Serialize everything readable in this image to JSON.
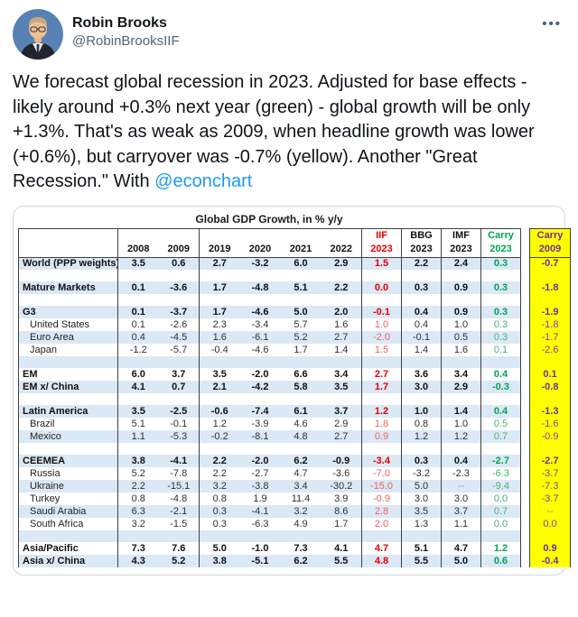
{
  "tweet": {
    "author": "Robin Brooks",
    "handle": "@RobinBrooksIIF",
    "more_label": "•••",
    "text": "We forecast global recession in 2023. Adjusted for base effects - likely around +0.3% next year (green) - global growth will be only +1.3%. That's as weak as 2009, when headline growth was lower (+0.6%), but carryover was -0.7% (yellow). Another \"Great Recession.\" With ",
    "mention": "@econchart"
  },
  "colors": {
    "link_blue": "#1d9bf0",
    "iif_red": "#e60000",
    "carry_green": "#00a550",
    "carry09_purple": "#7030a0",
    "carry09_yellow": "#ffff00",
    "row_stripe_blue": "#dbe8f5"
  },
  "table": {
    "title": "Global GDP Growth, in % y/y",
    "header_row1": [
      "",
      "",
      "",
      "",
      "",
      "",
      "",
      "IIF",
      "BBG",
      "IMF",
      "Carry",
      "Carry"
    ],
    "header_row2": [
      "",
      "2008",
      "2009",
      "2019",
      "2020",
      "2021",
      "2022",
      "2023",
      "2023",
      "2023",
      "2023",
      "2009"
    ],
    "rows": [
      {
        "label": "World (PPP weights)",
        "bold": true,
        "indent": false,
        "blank": false,
        "values": [
          "3.5",
          "0.6",
          "2.7",
          "-3.2",
          "6.0",
          "2.9",
          "1.5",
          "2.2",
          "2.4",
          "0.3",
          "-0.7"
        ]
      },
      {
        "label": "",
        "bold": false,
        "indent": false,
        "blank": true,
        "values": []
      },
      {
        "label": "Mature Markets",
        "bold": true,
        "indent": false,
        "blank": false,
        "values": [
          "0.1",
          "-3.6",
          "1.7",
          "-4.8",
          "5.1",
          "2.2",
          "0.0",
          "0.3",
          "0.9",
          "0.3",
          "-1.8"
        ]
      },
      {
        "label": "",
        "bold": false,
        "indent": false,
        "blank": true,
        "values": []
      },
      {
        "label": "G3",
        "bold": true,
        "indent": false,
        "blank": false,
        "values": [
          "0.1",
          "-3.7",
          "1.7",
          "-4.6",
          "5.0",
          "2.0",
          "-0.1",
          "0.4",
          "0.9",
          "0.3",
          "-1.9"
        ]
      },
      {
        "label": "United States",
        "bold": false,
        "indent": true,
        "blank": false,
        "values": [
          "0.1",
          "-2.6",
          "2.3",
          "-3.4",
          "5.7",
          "1.6",
          "1.0",
          "0.4",
          "1.0",
          "0.3",
          "-1.8"
        ]
      },
      {
        "label": "Euro Area",
        "bold": false,
        "indent": true,
        "blank": false,
        "values": [
          "0.4",
          "-4.5",
          "1.6",
          "-6.1",
          "5.2",
          "2.7",
          "-2.0",
          "-0.1",
          "0.5",
          "0.3",
          "-1.7"
        ]
      },
      {
        "label": "Japan",
        "bold": false,
        "indent": true,
        "blank": false,
        "values": [
          "-1.2",
          "-5.7",
          "-0.4",
          "-4.6",
          "1.7",
          "1.4",
          "1.5",
          "1.4",
          "1.6",
          "0.1",
          "-2.6"
        ]
      },
      {
        "label": "",
        "bold": false,
        "indent": false,
        "blank": true,
        "values": []
      },
      {
        "label": "EM",
        "bold": true,
        "indent": false,
        "blank": false,
        "values": [
          "6.0",
          "3.7",
          "3.5",
          "-2.0",
          "6.6",
          "3.4",
          "2.7",
          "3.6",
          "3.4",
          "0.4",
          "0.1"
        ]
      },
      {
        "label": "EM x/ China",
        "bold": true,
        "indent": false,
        "blank": false,
        "values": [
          "4.1",
          "0.7",
          "2.1",
          "-4.2",
          "5.8",
          "3.5",
          "1.7",
          "3.0",
          "2.9",
          "-0.3",
          "-0.8"
        ]
      },
      {
        "label": "",
        "bold": false,
        "indent": false,
        "blank": true,
        "values": []
      },
      {
        "label": "Latin America",
        "bold": true,
        "indent": false,
        "blank": false,
        "values": [
          "3.5",
          "-2.5",
          "-0.6",
          "-7.4",
          "6.1",
          "3.7",
          "1.2",
          "1.0",
          "1.4",
          "0.4",
          "-1.3"
        ]
      },
      {
        "label": "Brazil",
        "bold": false,
        "indent": true,
        "blank": false,
        "values": [
          "5.1",
          "-0.1",
          "1.2",
          "-3.9",
          "4.6",
          "2.9",
          "1.8",
          "0.8",
          "1.0",
          "0.5",
          "-1.6"
        ]
      },
      {
        "label": "Mexico",
        "bold": false,
        "indent": true,
        "blank": false,
        "values": [
          "1.1",
          "-5.3",
          "-0.2",
          "-8.1",
          "4.8",
          "2.7",
          "0.9",
          "1.2",
          "1.2",
          "0.7",
          "-0.9"
        ]
      },
      {
        "label": "",
        "bold": false,
        "indent": false,
        "blank": true,
        "values": []
      },
      {
        "label": "CEEMEA",
        "bold": true,
        "indent": false,
        "blank": false,
        "values": [
          "3.8",
          "-4.1",
          "2.2",
          "-2.0",
          "6.2",
          "-0.9",
          "-3.4",
          "0.3",
          "0.4",
          "-2.7",
          "-2.7"
        ]
      },
      {
        "label": "Russia",
        "bold": false,
        "indent": true,
        "blank": false,
        "values": [
          "5.2",
          "-7.8",
          "2.2",
          "-2.7",
          "4.7",
          "-3.6",
          "-7.0",
          "-3.2",
          "-2.3",
          "-6.3",
          "-3.7"
        ]
      },
      {
        "label": "Ukraine",
        "bold": false,
        "indent": true,
        "blank": false,
        "values": [
          "2.2",
          "-15.1",
          "3.2",
          "-3.8",
          "3.4",
          "-30.2",
          "-15.0",
          "5.0",
          "--",
          "-9.4",
          "-7.3"
        ]
      },
      {
        "label": "Turkey",
        "bold": false,
        "indent": true,
        "blank": false,
        "values": [
          "0.8",
          "-4.8",
          "0.8",
          "1.9",
          "11.4",
          "3.9",
          "-0.9",
          "3.0",
          "3.0",
          "0.0",
          "-3.7"
        ]
      },
      {
        "label": "Saudi Arabia",
        "bold": false,
        "indent": true,
        "blank": false,
        "values": [
          "6.3",
          "-2.1",
          "0.3",
          "-4.1",
          "3.2",
          "8.6",
          "2.8",
          "3.5",
          "3.7",
          "0.7",
          "--"
        ]
      },
      {
        "label": "South Africa",
        "bold": false,
        "indent": true,
        "blank": false,
        "values": [
          "3.2",
          "-1.5",
          "0.3",
          "-6.3",
          "4.9",
          "1.7",
          "2.0",
          "1.3",
          "1.1",
          "0.0",
          "0.0"
        ]
      },
      {
        "label": "",
        "bold": false,
        "indent": false,
        "blank": true,
        "values": []
      },
      {
        "label": "Asia/Pacific",
        "bold": true,
        "indent": false,
        "blank": false,
        "values": [
          "7.3",
          "7.6",
          "5.0",
          "-1.0",
          "7.3",
          "4.1",
          "4.7",
          "5.1",
          "4.7",
          "1.2",
          "0.9"
        ]
      },
      {
        "label": "Asia x/ China",
        "bold": true,
        "indent": false,
        "blank": false,
        "values": [
          "4.3",
          "5.2",
          "3.8",
          "-5.1",
          "6.2",
          "5.5",
          "4.8",
          "5.5",
          "5.0",
          "0.6",
          "-0.4"
        ]
      }
    ]
  }
}
